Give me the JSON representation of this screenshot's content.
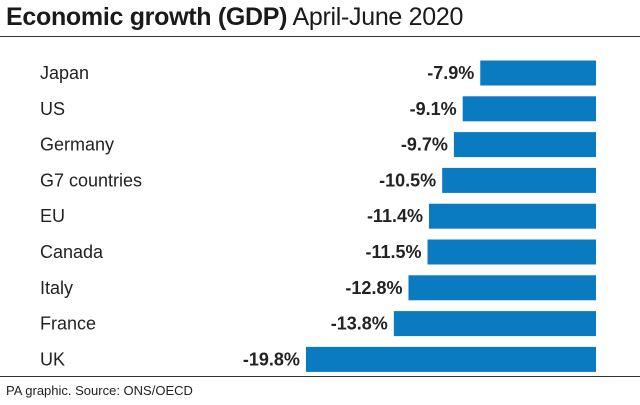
{
  "header": {
    "title_bold": "Economic growth (GDP)",
    "title_normal": "April-June 2020"
  },
  "footer": {
    "source": "PA graphic. Source: ONS/OECD"
  },
  "colors": {
    "bar": "#0a7bc1",
    "text": "#222222",
    "rule": "#333333"
  },
  "chart_data": {
    "type": "bar",
    "orientation": "horizontal",
    "title": "Economic growth (GDP) April-June 2020",
    "xlabel": "",
    "ylabel": "",
    "unit": "%",
    "categories": [
      "Japan",
      "US",
      "Germany",
      "G7 countries",
      "EU",
      "Canada",
      "Italy",
      "France",
      "UK"
    ],
    "values": [
      -7.9,
      -9.1,
      -9.7,
      -10.5,
      -11.4,
      -11.5,
      -12.8,
      -13.8,
      -19.8
    ],
    "value_labels": [
      "-7.9%",
      "-9.1%",
      "-9.7%",
      "-10.5%",
      "-11.4%",
      "-11.5%",
      "-12.8%",
      "-13.8%",
      "-19.8%"
    ],
    "xlim": [
      -20,
      0
    ],
    "grid": false,
    "legend": "none"
  }
}
